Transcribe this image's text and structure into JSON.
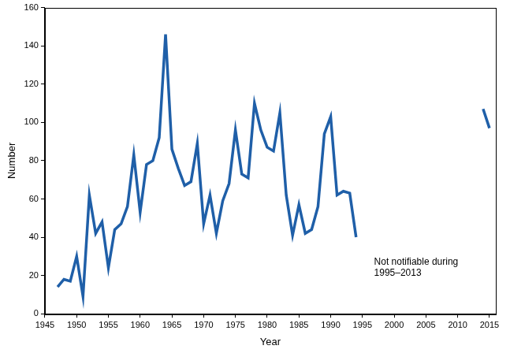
{
  "chart_data": {
    "type": "line",
    "x_label": "Year",
    "y_label": "Number",
    "annotation": [
      "Not notifiable during",
      "1995–2013"
    ],
    "x": [
      1947,
      1948,
      1949,
      1950,
      1951,
      1952,
      1953,
      1954,
      1955,
      1956,
      1957,
      1958,
      1959,
      1960,
      1961,
      1962,
      1963,
      1964,
      1965,
      1966,
      1967,
      1968,
      1969,
      1970,
      1971,
      1972,
      1973,
      1974,
      1975,
      1976,
      1977,
      1978,
      1979,
      1980,
      1981,
      1982,
      1983,
      1984,
      1985,
      1986,
      1987,
      1988,
      1989,
      1990,
      1991,
      1992,
      1993,
      1994,
      1995,
      1996,
      1997,
      1998,
      1999,
      2000,
      2001,
      2002,
      2003,
      2004,
      2005,
      2006,
      2007,
      2008,
      2009,
      2010,
      2011,
      2012,
      2013,
      2014,
      2015
    ],
    "values": [
      14,
      18,
      17,
      30,
      9,
      62,
      42,
      48,
      24,
      44,
      47,
      56,
      83,
      53,
      78,
      80,
      92,
      146,
      86,
      76,
      67,
      69,
      89,
      47,
      62,
      42,
      59,
      68,
      96,
      73,
      71,
      110,
      96,
      87,
      85,
      105,
      62,
      41,
      57,
      42,
      44,
      56,
      94,
      103,
      62,
      64,
      63,
      40,
      null,
      null,
      null,
      null,
      null,
      null,
      null,
      null,
      null,
      null,
      null,
      null,
      null,
      null,
      null,
      null,
      null,
      null,
      null,
      107,
      97
    ],
    "color": "#1f5fa8",
    "xlim": [
      1945,
      2016
    ],
    "xticks": [
      1945,
      1950,
      1955,
      1960,
      1965,
      1970,
      1975,
      1980,
      1985,
      1990,
      1995,
      2000,
      2005,
      2010,
      2015
    ],
    "ylim": [
      0,
      160
    ],
    "yticks": [
      0,
      20,
      40,
      60,
      80,
      100,
      120,
      140,
      160
    ],
    "grid": false
  }
}
